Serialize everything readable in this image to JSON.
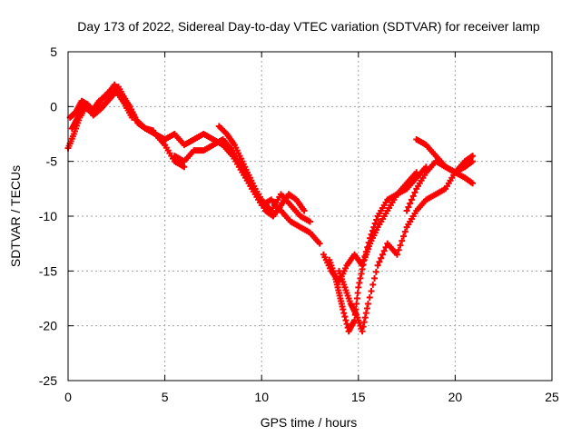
{
  "chart_data": {
    "type": "scatter",
    "title": "Day 173 of 2022, Sidereal Day-to-day VTEC variation (SDTVAR) for receiver lamp",
    "xlabel": "GPS time / hours",
    "ylabel": "SDTVAR / TECUs",
    "xlim": [
      0,
      25
    ],
    "ylim": [
      -25,
      5
    ],
    "xticks": [
      0,
      5,
      10,
      15,
      20,
      25
    ],
    "yticks": [
      5,
      0,
      -5,
      -10,
      -15,
      -20,
      -25
    ],
    "grid": true,
    "marker": "plus",
    "color": "#ff0000",
    "series": [
      {
        "name": "arc1",
        "x": [
          0.0,
          0.3,
          0.6,
          1.0,
          1.4,
          1.8,
          2.2,
          2.6,
          3.0,
          3.5,
          4.0,
          4.5,
          5.0,
          5.5,
          6.0
        ],
        "y": [
          -3.8,
          -2.5,
          -1.0,
          0.2,
          -0.5,
          0.8,
          1.5,
          1.8,
          0.5,
          -1.2,
          -2.0,
          -2.5,
          -3.5,
          -5.0,
          -5.5
        ]
      },
      {
        "name": "arc2",
        "x": [
          0.2,
          0.5,
          0.8,
          1.2,
          1.6,
          2.0,
          2.4,
          2.8,
          3.2,
          3.6,
          4.0,
          4.4
        ],
        "y": [
          -2.0,
          -1.0,
          0.0,
          -0.5,
          0.5,
          1.0,
          2.0,
          1.0,
          0.0,
          -1.5,
          -2.0,
          -2.2
        ]
      },
      {
        "name": "arc3",
        "x": [
          0.1,
          0.4,
          0.7,
          1.0,
          1.3,
          1.7,
          2.1,
          2.5,
          2.9,
          3.3
        ],
        "y": [
          -1.0,
          -0.5,
          0.5,
          0.2,
          -0.8,
          -0.2,
          0.6,
          1.4,
          0.3,
          -1.0
        ]
      },
      {
        "name": "arc4",
        "x": [
          4.0,
          4.5,
          5.0,
          5.5,
          6.0,
          6.5,
          7.0,
          7.5,
          8.0,
          8.5,
          9.0,
          9.5,
          10.0,
          10.5,
          11.0,
          11.5,
          12.0,
          12.5,
          13.0
        ],
        "y": [
          -2.0,
          -2.5,
          -3.0,
          -2.5,
          -3.5,
          -3.0,
          -2.5,
          -3.0,
          -3.5,
          -4.5,
          -6.0,
          -7.5,
          -9.0,
          -8.5,
          -9.5,
          -10.5,
          -11.0,
          -11.5,
          -12.5
        ]
      },
      {
        "name": "arc5",
        "x": [
          5.5,
          6.0,
          6.5,
          7.0,
          7.5,
          8.0,
          8.5,
          9.0,
          9.5,
          10.0,
          10.5,
          11.0,
          11.5,
          12.0,
          12.5
        ],
        "y": [
          -4.5,
          -5.0,
          -4.0,
          -4.0,
          -3.5,
          -3.0,
          -4.0,
          -5.5,
          -7.0,
          -8.5,
          -9.5,
          -8.0,
          -9.0,
          -10.0,
          -10.5
        ]
      },
      {
        "name": "arc6",
        "x": [
          7.8,
          8.2,
          8.6,
          9.0,
          9.4,
          9.8,
          10.2,
          10.6,
          11.0,
          11.4,
          11.8,
          12.2
        ],
        "y": [
          -1.8,
          -2.5,
          -3.5,
          -5.0,
          -6.5,
          -8.0,
          -9.5,
          -10.0,
          -9.0,
          -8.0,
          -8.5,
          -9.5
        ]
      },
      {
        "name": "arc7",
        "x": [
          13.5,
          13.8,
          14.0,
          14.2,
          14.5,
          14.8,
          15.0,
          15.3,
          15.6,
          16.0,
          16.5,
          17.0,
          17.5,
          18.0
        ],
        "y": [
          -14.0,
          -15.5,
          -17.0,
          -18.5,
          -20.5,
          -19.5,
          -16.5,
          -14.0,
          -12.5,
          -11.0,
          -9.5,
          -8.0,
          -7.0,
          -6.0
        ]
      },
      {
        "name": "arc8",
        "x": [
          13.2,
          13.6,
          14.0,
          14.4,
          14.8,
          15.2,
          15.6,
          16.0,
          16.5,
          17.0,
          17.5,
          18.0,
          18.5
        ],
        "y": [
          -13.5,
          -15.0,
          -16.0,
          -14.5,
          -13.5,
          -14.5,
          -12.0,
          -10.0,
          -8.5,
          -8.0,
          -7.5,
          -6.5,
          -5.5
        ]
      },
      {
        "name": "arc9",
        "x": [
          14.0,
          14.3,
          14.6,
          14.9,
          15.2,
          15.5,
          16.0,
          16.5,
          17.0,
          17.5,
          18.0,
          18.5,
          19.0,
          19.5,
          20.0,
          20.5,
          20.9
        ],
        "y": [
          -15.0,
          -16.5,
          -18.0,
          -19.0,
          -20.5,
          -18.0,
          -14.5,
          -12.5,
          -13.5,
          -11.0,
          -9.5,
          -8.5,
          -8.0,
          -7.5,
          -6.0,
          -5.0,
          -4.5
        ]
      },
      {
        "name": "arc10",
        "x": [
          18.0,
          18.5,
          19.0,
          19.5,
          20.0,
          20.5,
          20.9
        ],
        "y": [
          -3.0,
          -3.5,
          -4.5,
          -5.5,
          -6.0,
          -6.5,
          -7.0
        ]
      },
      {
        "name": "arc11",
        "x": [
          17.5,
          18.0,
          18.5,
          19.0,
          19.5,
          20.0,
          20.5,
          20.9
        ],
        "y": [
          -9.5,
          -7.5,
          -6.0,
          -5.0,
          -5.5,
          -6.0,
          -5.5,
          -5.0
        ]
      }
    ]
  }
}
